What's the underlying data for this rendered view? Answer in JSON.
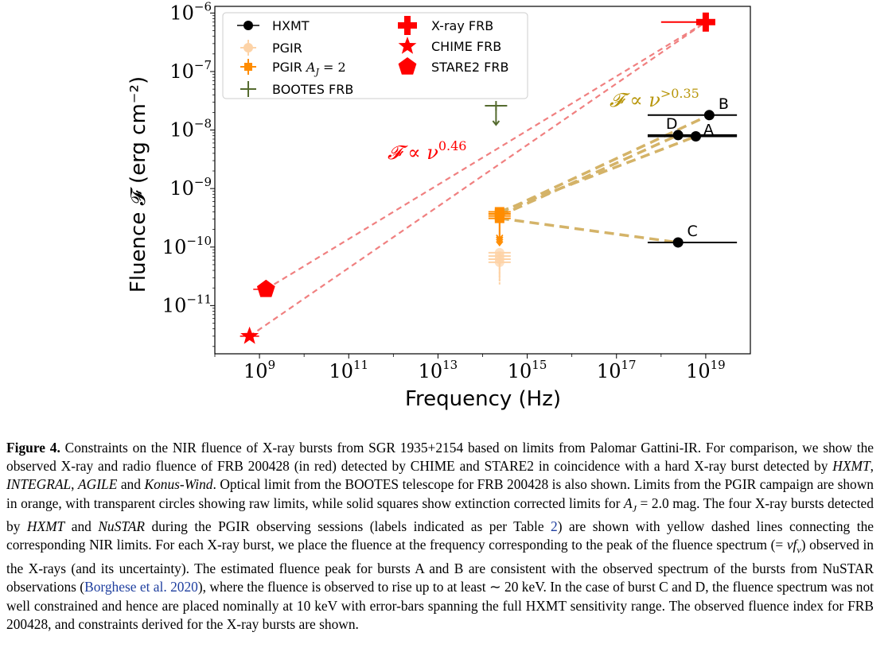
{
  "chart_data": {
    "type": "scatter",
    "xlabel": "Frequency (Hz)",
    "ylabel": "Fluence 𝓕 (erg cm⁻²)",
    "x_scale": "log",
    "y_scale": "log",
    "xlim": [
      100000000.0,
      1e+20
    ],
    "ylim": [
      1.5e-12,
      1.3e-06
    ],
    "x_ticks": [
      {
        "base": "10",
        "exp": "9",
        "value": 1000000000.0
      },
      {
        "base": "10",
        "exp": "11",
        "value": 100000000000.0
      },
      {
        "base": "10",
        "exp": "13",
        "value": 10000000000000.0
      },
      {
        "base": "10",
        "exp": "15",
        "value": 1000000000000000.0
      },
      {
        "base": "10",
        "exp": "17",
        "value": 1e+17
      },
      {
        "base": "10",
        "exp": "19",
        "value": 1e+19
      }
    ],
    "y_ticks": [
      {
        "base": "10",
        "exp": "−6",
        "value": 1e-06
      },
      {
        "base": "10",
        "exp": "−7",
        "value": 1e-07
      },
      {
        "base": "10",
        "exp": "−8",
        "value": 1e-08
      },
      {
        "base": "10",
        "exp": "−9",
        "value": 1e-09
      },
      {
        "base": "10",
        "exp": "−10",
        "value": 1e-10
      },
      {
        "base": "10",
        "exp": "−11",
        "value": 1e-11
      }
    ],
    "legend": {
      "placement": "top-left",
      "entries": [
        {
          "label": "HXMT",
          "marker": "circle",
          "color": "#000000"
        },
        {
          "label": "PGIR",
          "marker": "circle-errorbar",
          "color": "#fdd3a7"
        },
        {
          "label": "PGIR A_J = 2",
          "marker": "square-errorbar",
          "color": "#ff8c00"
        },
        {
          "label": "BOOTES FRB",
          "marker": "plus-errorbar",
          "color": "#556b2f"
        },
        {
          "label": "X-ray FRB",
          "marker": "plus",
          "color": "#ff0000"
        },
        {
          "label": "CHIME FRB",
          "marker": "star",
          "color": "#ff0000"
        },
        {
          "label": "STARE2 FRB",
          "marker": "pentagon",
          "color": "#ff0000"
        }
      ]
    },
    "hxmt_points": [
      {
        "label": "A",
        "x": 6e+18,
        "y": 7.8e-09,
        "xerr_low": 5e+17,
        "xerr_high": 5e+19
      },
      {
        "label": "B",
        "x": 1.2e+19,
        "y": 1.8e-08,
        "xerr_low": 5e+17,
        "xerr_high": 5e+19
      },
      {
        "label": "C",
        "x": 2.4e+18,
        "y": 1.2e-10,
        "xerr_low": 5e+17,
        "xerr_high": 5e+19
      },
      {
        "label": "D",
        "x": 2.4e+18,
        "y": 8.2e-09,
        "xerr_low": 5e+17,
        "xerr_high": 5e+19
      }
    ],
    "pgir_raw": {
      "x": 240000000000000.0,
      "ys": [
        5.5e-11,
        6.2e-11,
        7e-11,
        8e-11
      ],
      "limit": "upper"
    },
    "pgir_corrected": {
      "x": 240000000000000.0,
      "ys": [
        3.1e-10,
        3.4e-10,
        3.7e-10,
        4e-10
      ],
      "limit": "upper"
    },
    "bootes_frb": {
      "x": 200000000000000.0,
      "y": 2.6e-08,
      "limit": "upper"
    },
    "xray_frb": {
      "x": 1e+19,
      "y": 7e-07,
      "xerr_low": 1e+18
    },
    "chime_frb": {
      "x": 600000000.0,
      "y": 3e-12
    },
    "stare2_frb": {
      "x": 1400000000.0,
      "y": 1.9e-11
    },
    "frb_fit_lines": [
      {
        "from": [
          600000000.0,
          3e-12
        ],
        "to": [
          1e+19,
          7e-07
        ],
        "color": "#f08080"
      },
      {
        "from": [
          1400000000.0,
          1.9e-11
        ],
        "to": [
          1e+19,
          7e-07
        ],
        "color": "#f08080"
      }
    ],
    "xray_constraint_lines": [
      {
        "from": [
          240000000000000.0,
          4e-10
        ],
        "to": [
          6e+18,
          7.8e-09
        ],
        "color": "#d4b368"
      },
      {
        "from": [
          240000000000000.0,
          3.8e-10
        ],
        "to": [
          1.2e+19,
          1.8e-08
        ],
        "color": "#d4b368"
      },
      {
        "from": [
          240000000000000.0,
          3.4e-10
        ],
        "to": [
          2.4e+18,
          8.2e-09
        ],
        "color": "#d4b368"
      },
      {
        "from": [
          240000000000000.0,
          3.1e-10
        ],
        "to": [
          2.4e+18,
          1.2e-10
        ],
        "color": "#d4b368"
      }
    ],
    "annotations": [
      {
        "id": "frb_index",
        "text_base": "𝓕 ∝ ν",
        "text_exp": "0.46",
        "color": "#ff0000"
      },
      {
        "id": "xray_index",
        "text_base": "𝓕 ∝ ν",
        "text_exp": ">0.35",
        "color": "#b8960b"
      }
    ]
  },
  "caption": {
    "label": "Figure 4.",
    "segments": [
      {
        "t": " Constraints on the NIR fluence of X-ray bursts from SGR 1935+2154 based on limits from Palomar Gattini-IR. For comparison, we show the observed X-ray and radio fluence of FRB 200428 (in red) detected by CHIME and STARE2 in coincidence with a hard X-ray burst detected by "
      },
      {
        "t": "HXMT",
        "i": true
      },
      {
        "t": ", "
      },
      {
        "t": "INTEGRAL",
        "i": true
      },
      {
        "t": ", "
      },
      {
        "t": "AGILE",
        "i": true
      },
      {
        "t": " and "
      },
      {
        "t": "Konus-Wind",
        "i": true
      },
      {
        "t": ". Optical limit from the BOOTES telescope for FRB 200428 is also shown. Limits from the PGIR campaign are shown in orange, with transparent circles showing raw limits, while solid squares show extinction corrected limits for "
      },
      {
        "t": "A",
        "i": true
      },
      {
        "t": "J",
        "sub": true
      },
      {
        "t": " = 2.0 mag. The four X-ray bursts detected by "
      },
      {
        "t": "HXMT",
        "i": true
      },
      {
        "t": " and "
      },
      {
        "t": "NuSTAR",
        "i": true
      },
      {
        "t": " during the PGIR observing sessions (labels indicated as per Table "
      },
      {
        "t": "2",
        "ref": true
      },
      {
        "t": ") are shown with yellow dashed lines connecting the corresponding NIR limits. For each X-ray burst, we place the fluence at the frequency corresponding to the peak of the fluence spectrum (= "
      },
      {
        "t": "νf",
        "i": true
      },
      {
        "t": "ν",
        "sub": true
      },
      {
        "t": ") observed in the X-rays (and its uncertainty). The estimated fluence peak for bursts A and B are consistent with the observed spectrum of the bursts from NuSTAR observations ("
      },
      {
        "t": "Borghese et al. 2020",
        "ref": true
      },
      {
        "t": "), where the fluence is observed to rise up to at least ∼ 20 keV. In the case of burst C and D, the fluence spectrum was not well constrained and hence are placed nominally at 10 keV with error-bars spanning the full HXMT sensitivity range. The observed fluence index for FRB 200428, and constraints derived for the X-ray bursts are shown."
      }
    ]
  }
}
